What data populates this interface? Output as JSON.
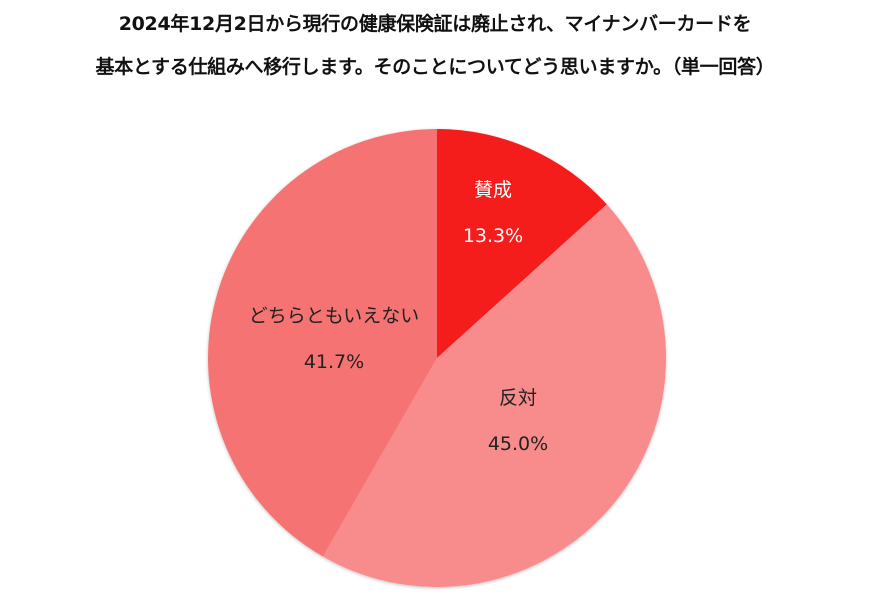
{
  "title": {
    "line1": "2024年12月2日から現行の健康保険証は廃止され、マイナンバーカードを",
    "line2": "基本とする仕組みへ移行します。そのことについてどう思いますか。（単一回答）"
  },
  "chart_data": {
    "type": "pie",
    "title": "2024年12月2日から現行の健康保険証は廃止され、マイナンバーカードを基本とする仕組みへ移行します。そのことについてどう思いますか。（単一回答）",
    "categories": [
      "賛成",
      "反対",
      "どちらともいえない"
    ],
    "values": [
      13.3,
      45.0,
      41.7
    ],
    "unit": "%",
    "start_angle": "12 o'clock, clockwise",
    "colors": [
      "#f51b1b",
      "#f88c8c",
      "#f57373"
    ],
    "label_colors": [
      "#ffffff",
      "#222222",
      "#222222"
    ],
    "labels": [
      {
        "name": "賛成",
        "value": "13.3%"
      },
      {
        "name": "反対",
        "value": "45.0%"
      },
      {
        "name": "どちらともいえない",
        "value": "41.7%"
      }
    ],
    "legend": "none (labels inside slices)"
  }
}
